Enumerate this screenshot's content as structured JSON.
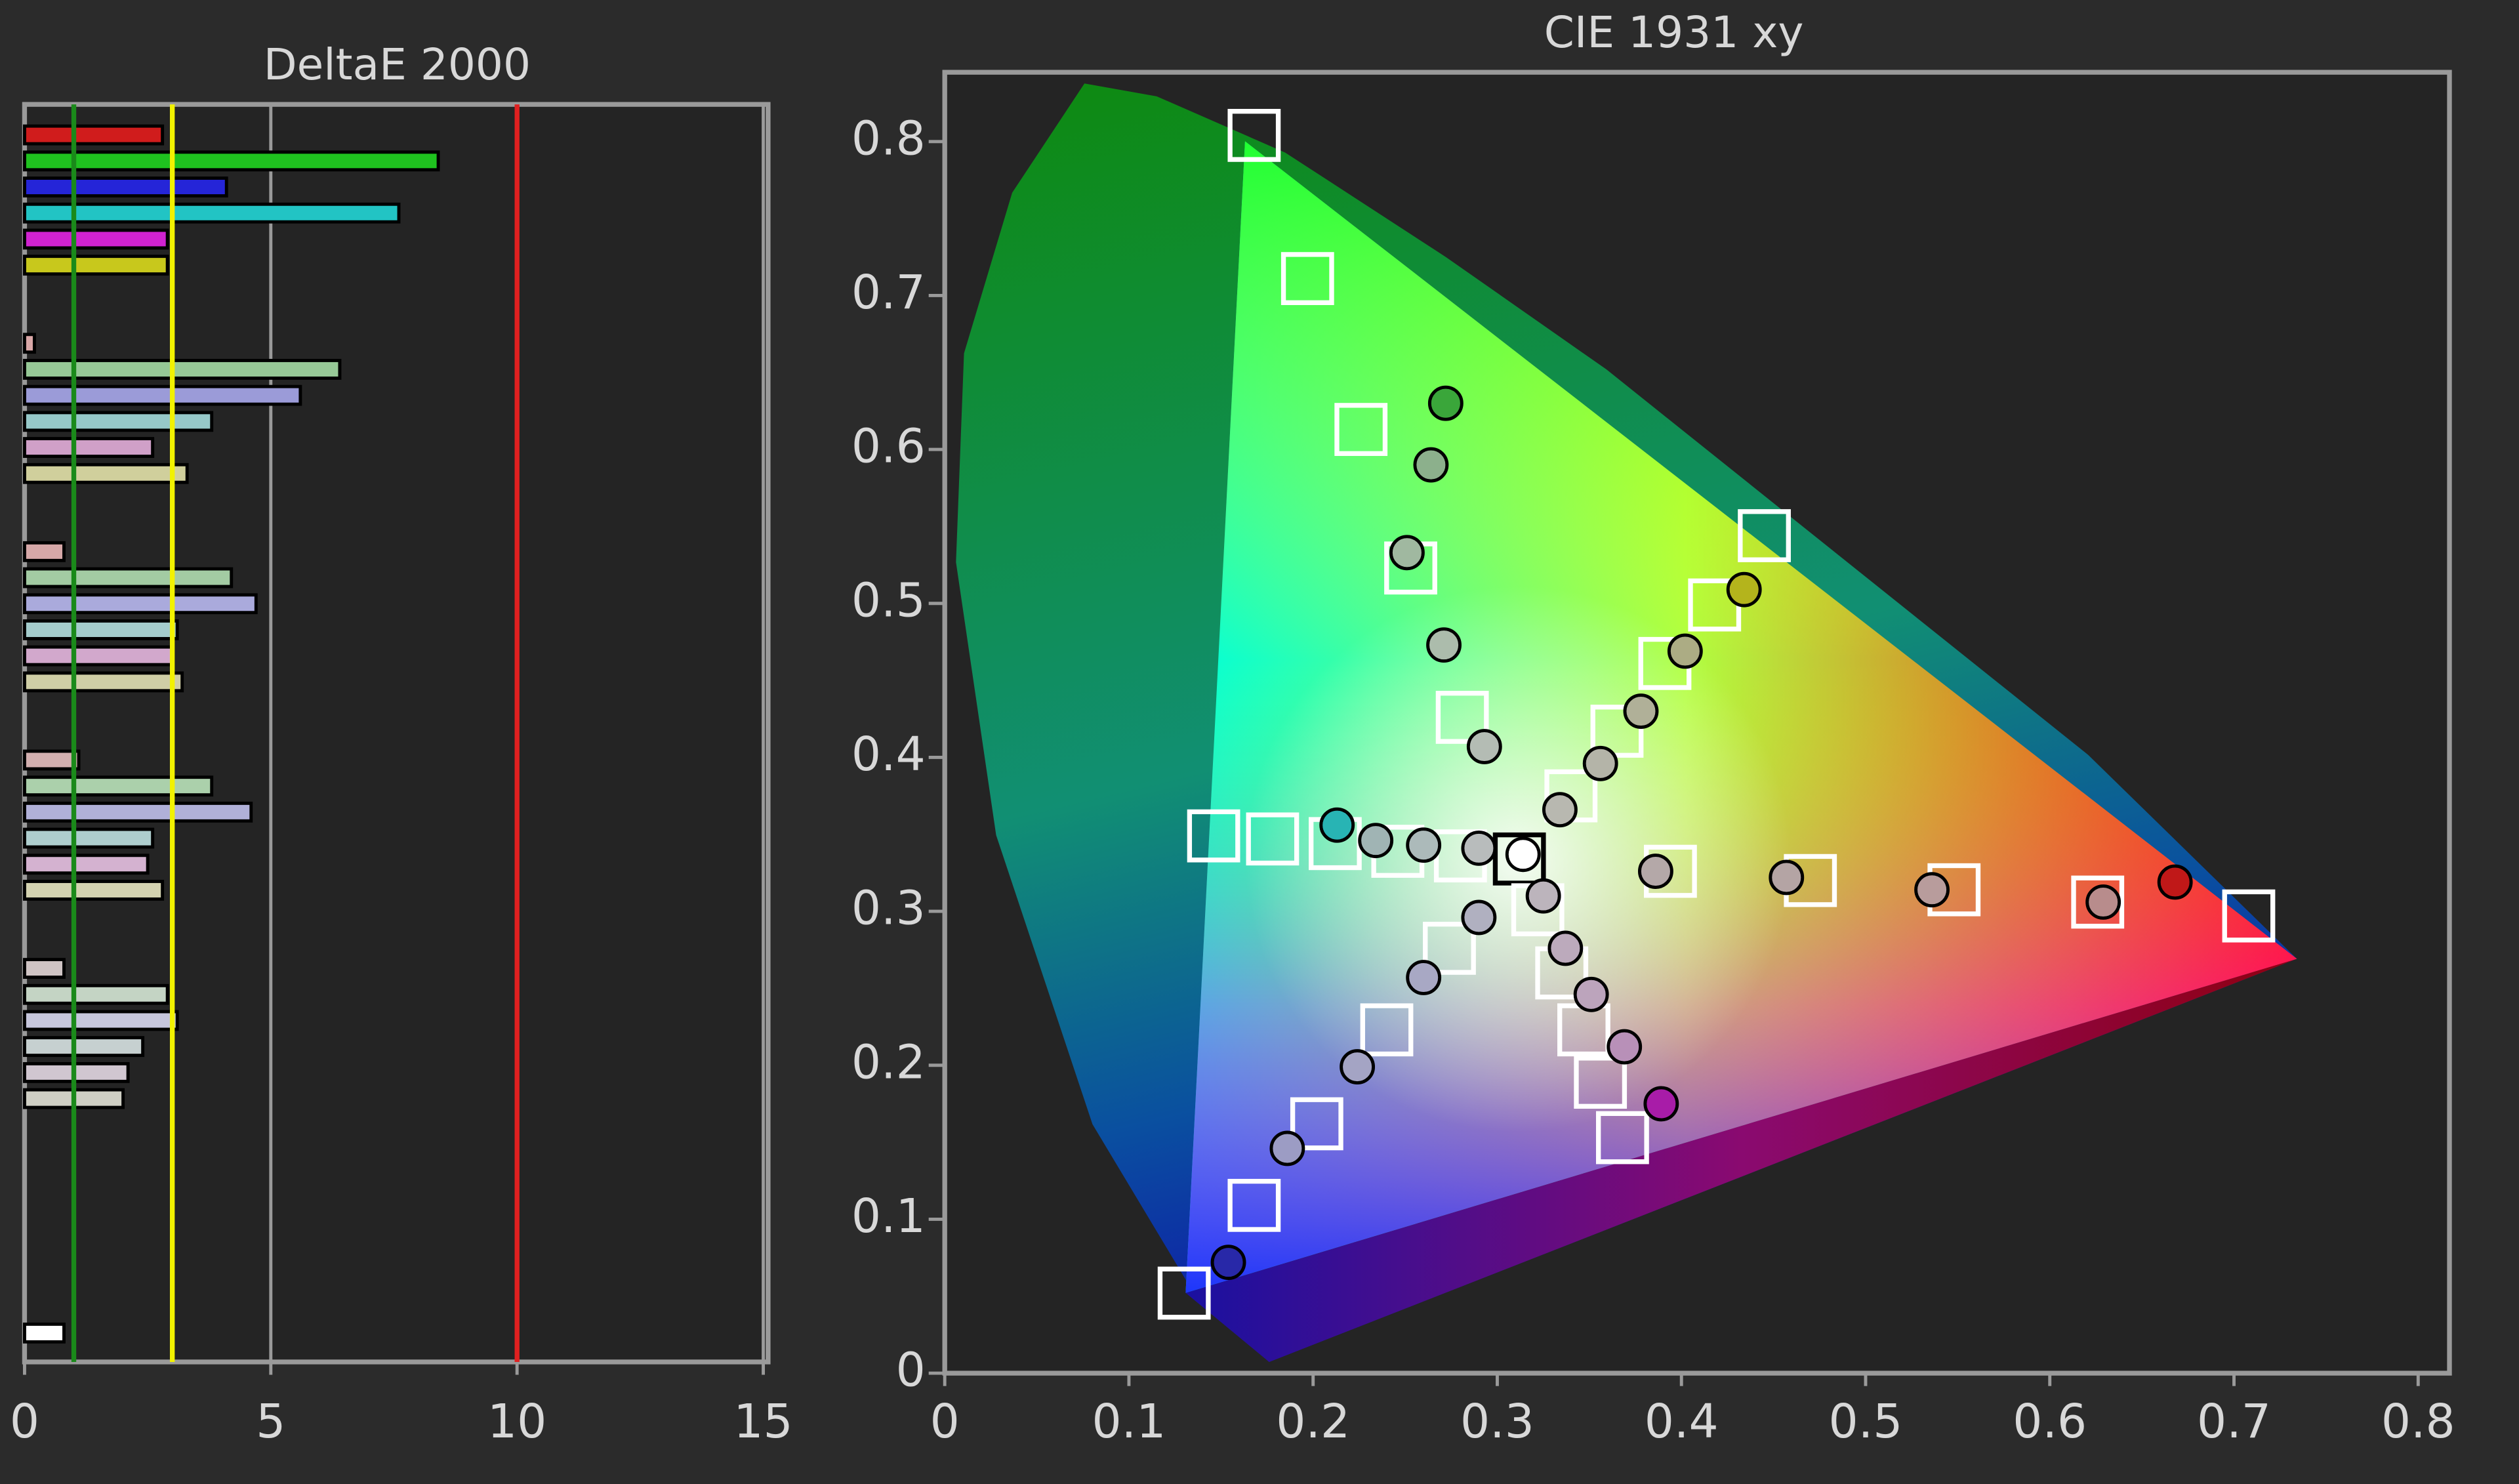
{
  "chart_data": [
    {
      "type": "bar",
      "orientation": "horizontal",
      "title": "DeltaE 2000",
      "categories": [
        null,
        null,
        null,
        null,
        null,
        null,
        null,
        null,
        null,
        null,
        null,
        null,
        null,
        null,
        null,
        null,
        null,
        null,
        null,
        null,
        null,
        null,
        null,
        null,
        null,
        null,
        null,
        null,
        null,
        null,
        null,
        null,
        null,
        null,
        null,
        null,
        null,
        null,
        null,
        null,
        null,
        null,
        null,
        null,
        null,
        null,
        null
      ],
      "values": [
        2.8,
        8.4,
        4.1,
        7.6,
        2.9,
        2.9,
        null,
        null,
        0.2,
        6.4,
        5.6,
        3.8,
        2.6,
        3.3,
        null,
        null,
        0.8,
        4.2,
        4.7,
        3.1,
        3.0,
        3.2,
        null,
        null,
        1.1,
        3.8,
        4.6,
        2.6,
        2.5,
        2.8,
        null,
        null,
        0.8,
        2.9,
        3.1,
        2.4,
        2.1,
        2.0,
        null,
        null,
        null,
        null,
        null,
        null,
        null,
        null,
        0.8
      ],
      "colors": [
        "#d01c1c",
        "#1fc21f",
        "#2525d8",
        "#22c4c4",
        "#d022d0",
        "#c8c81c",
        null,
        null,
        "#d9a7a7",
        "#96c896",
        "#9b9bd8",
        "#96c8c8",
        "#d0a0c8",
        "#d0cf9c",
        null,
        null,
        "#d6a8a8",
        "#a3cba3",
        "#aaaadc",
        "#a4cccc",
        "#d2a8cc",
        "#cfcea6",
        null,
        null,
        "#d2afaf",
        "#abd0ab",
        "#b0b0d8",
        "#aecece",
        "#d4b2d0",
        "#d3d2b0",
        null,
        null,
        "#cfc4c4",
        "#c4d4c4",
        "#c6c6dc",
        "#c6d0d0",
        "#d0c6d0",
        "#cfcfc4",
        null,
        null,
        null,
        null,
        null,
        null,
        null,
        null,
        "#ffffff"
      ],
      "xlim": [
        0,
        15
      ],
      "xticks": [
        0,
        5,
        10,
        15
      ],
      "grid": true,
      "reference_lines": [
        {
          "value": 1,
          "color": "#1a8a1a"
        },
        {
          "value": 3,
          "color": "#f2f200"
        },
        {
          "value": 10,
          "color": "#e02020"
        }
      ]
    },
    {
      "type": "scatter",
      "title": "CIE 1931 xy",
      "xlim": [
        0,
        0.817
      ],
      "ylim": [
        0,
        0.845
      ],
      "xticks": [
        0,
        0.1,
        0.2,
        0.3,
        0.4,
        0.5,
        0.6,
        0.7,
        0.8
      ],
      "yticks": [
        0,
        0.1,
        0.2,
        0.3,
        0.4,
        0.5,
        0.6,
        0.7,
        0.8
      ],
      "series": [
        {
          "marker": "square",
          "color": "#ffffff",
          "x": [
            0.168,
            0.197,
            0.226,
            0.253,
            0.281,
            0.146,
            0.178,
            0.212,
            0.246,
            0.28,
            0.312,
            0.445,
            0.418,
            0.391,
            0.365,
            0.34,
            0.394,
            0.47,
            0.548,
            0.626,
            0.708,
            0.322,
            0.335,
            0.347,
            0.356,
            0.368,
            0.274,
            0.24,
            0.202,
            0.168,
            0.13
          ],
          "values": [
            0.804,
            0.711,
            0.613,
            0.523,
            0.426,
            0.349,
            0.347,
            0.344,
            0.339,
            0.336,
            0.334,
            0.544,
            0.499,
            0.461,
            0.417,
            0.375,
            0.326,
            0.32,
            0.314,
            0.306,
            0.297,
            0.301,
            0.26,
            0.223,
            0.189,
            0.153,
            0.276,
            0.223,
            0.162,
            0.109,
            0.052
          ]
        },
        {
          "marker": "circle",
          "x": [
            0.272,
            0.264,
            0.251,
            0.271,
            0.293,
            0.213,
            0.234,
            0.26,
            0.29,
            0.314,
            0.434,
            0.402,
            0.378,
            0.356,
            0.334,
            0.386,
            0.457,
            0.536,
            0.629,
            0.668,
            0.325,
            0.337,
            0.351,
            0.369,
            0.389,
            0.29,
            0.26,
            0.224,
            0.186,
            0.154
          ],
          "values": [
            0.63,
            0.59,
            0.533,
            0.473,
            0.407,
            0.356,
            0.346,
            0.343,
            0.341,
            0.337,
            0.509,
            0.469,
            0.43,
            0.396,
            0.366,
            0.326,
            0.322,
            0.314,
            0.306,
            0.319,
            0.31,
            0.276,
            0.246,
            0.212,
            0.175,
            0.296,
            0.257,
            0.199,
            0.146,
            0.072
          ],
          "colors": [
            "#3aa63a",
            "#8cb08c",
            "#a0b8a0",
            "#acbcac",
            "#b4bcb4",
            "#28b4b4",
            "#a0b4b4",
            "#acbaba",
            "#b8bcbc",
            "#ffffff",
            "#b4b41c",
            "#acac84",
            "#b0b098",
            "#b4b4a8",
            "#b8b8b0",
            "#b4a8a8",
            "#b4a4a4",
            "#b89c9c",
            "#b88c8c",
            "#c01818",
            "#bcb4bc",
            "#bcaabc",
            "#bca4bc",
            "#b890b8",
            "#a81ca8",
            "#b0b0c0",
            "#a8a8c4",
            "#a4a4c4",
            "#9c9cc4",
            "#2828a8"
          ]
        }
      ]
    }
  ]
}
